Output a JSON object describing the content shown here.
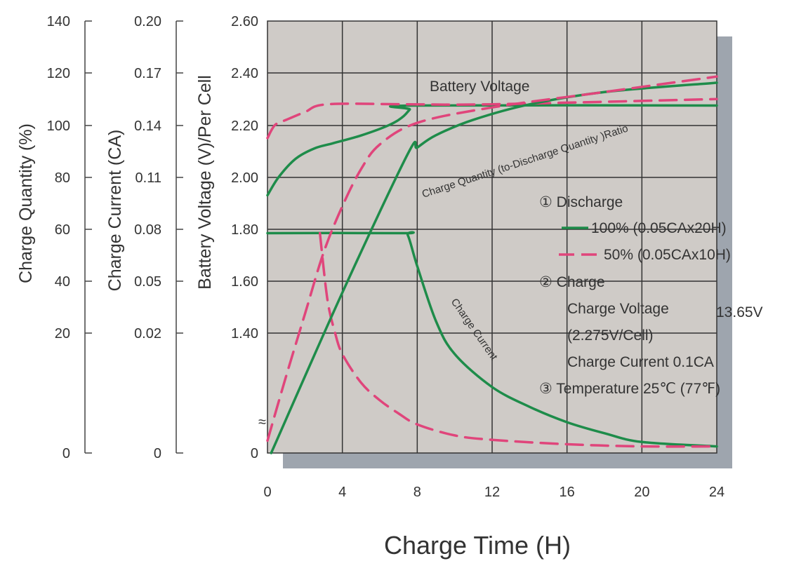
{
  "chart_data": {
    "type": "line",
    "xlabel": "Charge Time (H)",
    "x_ticks": [
      "0",
      "4",
      "8",
      "12",
      "16",
      "20",
      "24"
    ],
    "xlim": [
      0,
      24
    ],
    "y_axes": [
      {
        "label": "Charge Quantity (%)",
        "ticks": [
          "140",
          "120",
          "100",
          "80",
          "60",
          "40",
          "20",
          "0"
        ]
      },
      {
        "label": "Charge Current (CA)",
        "ticks": [
          "0.20",
          "0.17",
          "0.14",
          "0.11",
          "0.08",
          "0.05",
          "0.02",
          "0"
        ]
      },
      {
        "label": "Battery Voltage (V)/Per Cell",
        "ticks": [
          "2.60",
          "2.40",
          "2.20",
          "2.00",
          "1.80",
          "1.60",
          "1.40",
          "0"
        ]
      }
    ],
    "break_symbol": "≈",
    "curve_labels": {
      "voltage": "Battery Voltage",
      "quantity": "Charge Quantity (to-Discharge Quantity )Ratio",
      "current": "Charge Current"
    },
    "legend": {
      "discharge_title": "① Discharge",
      "series": [
        {
          "label": "100% (0.05CAx20H)",
          "color": "#1e8c4a",
          "style": "solid"
        },
        {
          "label": "50% (0.05CAx10H)",
          "color": "#e0457b",
          "style": "dashed"
        }
      ],
      "charge_title": "② Charge",
      "charge_voltage_label": "Charge Voltage",
      "charge_voltage_value": "13.65V",
      "charge_voltage_per_cell": "(2.275V/Cell)",
      "charge_current": "Charge Current 0.1CA",
      "temperature": "③ Temperature 25℃ (77℉)"
    },
    "series": [
      {
        "name": "100% (0.05CAx20H)",
        "axis": "voltage",
        "color": "#1e8c4a",
        "points": [
          [
            0,
            1.93
          ],
          [
            0.6,
            2.0
          ],
          [
            1.5,
            2.07
          ],
          [
            2.5,
            2.11
          ],
          [
            3.5,
            2.13
          ],
          [
            5,
            2.16
          ],
          [
            6.5,
            2.2
          ],
          [
            7.2,
            2.23
          ],
          [
            7.6,
            2.26
          ],
          [
            7.8,
            2.275
          ],
          [
            24,
            2.275
          ]
        ]
      },
      {
        "name": "50% (0.05CAx10H)",
        "axis": "voltage",
        "color": "#e0457b",
        "points": [
          [
            0,
            2.15
          ],
          [
            0.4,
            2.2
          ],
          [
            1,
            2.22
          ],
          [
            2,
            2.25
          ],
          [
            3.2,
            2.28
          ],
          [
            7.5,
            2.28
          ],
          [
            12,
            2.28
          ],
          [
            24,
            2.3
          ]
        ]
      },
      {
        "name": "100% (0.05CAx20H)",
        "axis": "current",
        "color": "#1e8c4a",
        "points": [
          [
            0,
            0.1
          ],
          [
            7.2,
            0.1
          ],
          [
            7.5,
            0.099
          ],
          [
            8,
            0.085
          ],
          [
            9,
            0.06
          ],
          [
            10,
            0.045
          ],
          [
            12,
            0.03
          ],
          [
            14,
            0.021
          ],
          [
            16,
            0.014
          ],
          [
            18,
            0.009
          ],
          [
            20,
            0.005
          ],
          [
            24,
            0.003
          ]
        ]
      },
      {
        "name": "50% (0.05CAx10H)",
        "axis": "current",
        "color": "#e0457b",
        "points": [
          [
            2.8,
            0.1
          ],
          [
            3.2,
            0.07
          ],
          [
            3.6,
            0.055
          ],
          [
            4,
            0.045
          ],
          [
            5,
            0.032
          ],
          [
            6,
            0.024
          ],
          [
            7,
            0.018
          ],
          [
            8,
            0.013
          ],
          [
            10,
            0.008
          ],
          [
            12,
            0.006
          ],
          [
            16,
            0.004
          ],
          [
            20,
            0.003
          ],
          [
            24,
            0.003
          ]
        ]
      },
      {
        "name": "100% (0.05CAx20H)",
        "axis": "quantity",
        "color": "#1e8c4a",
        "points": [
          [
            0.2,
            0
          ],
          [
            4,
            52
          ],
          [
            7.5,
            97
          ],
          [
            8,
            99
          ],
          [
            9,
            103
          ],
          [
            11,
            108
          ],
          [
            14,
            113
          ],
          [
            18,
            117
          ],
          [
            24,
            120
          ]
        ]
      },
      {
        "name": "50% (0.05CAx10H)",
        "axis": "quantity",
        "color": "#e0457b",
        "points": [
          [
            0,
            4
          ],
          [
            1,
            25
          ],
          [
            2,
            45
          ],
          [
            3,
            65
          ],
          [
            4,
            80
          ],
          [
            5,
            92
          ],
          [
            6,
            100
          ],
          [
            8,
            107
          ],
          [
            12,
            112
          ],
          [
            18,
            117
          ],
          [
            24,
            122
          ]
        ]
      }
    ]
  }
}
